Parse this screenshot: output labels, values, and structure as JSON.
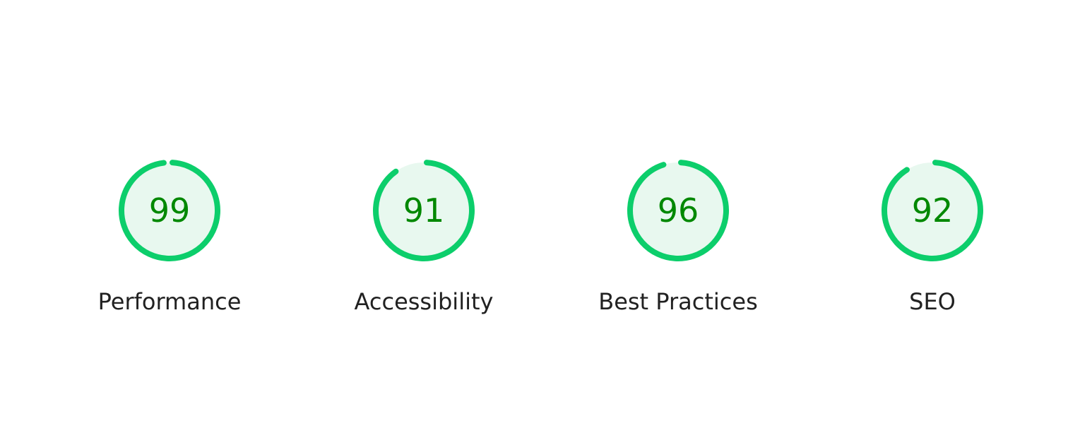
{
  "colors": {
    "ring": "#0cce6b",
    "fill": "#e8f8ef",
    "score_text": "#008800",
    "label_text": "#212121"
  },
  "gauges": [
    {
      "label": "Performance",
      "score": "99"
    },
    {
      "label": "Accessibility",
      "score": "91"
    },
    {
      "label": "Best Practices",
      "score": "96"
    },
    {
      "label": "SEO",
      "score": "92"
    }
  ]
}
